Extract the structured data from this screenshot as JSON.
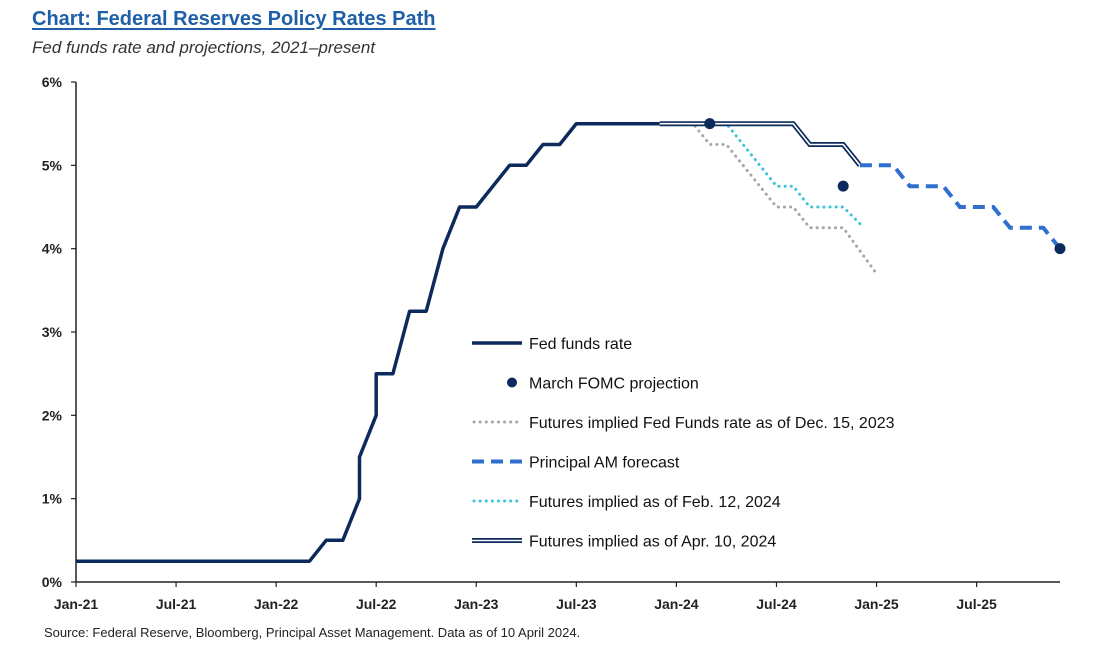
{
  "header": {
    "title": "Chart: Federal Reserves Policy Rates Path",
    "subtitle": "Fed funds rate and projections, 2021–present"
  },
  "footer": {
    "source": "Source: Federal Reserve, Bloomberg, Principal Asset Management. Data as of 10 April 2024."
  },
  "chart_data": {
    "type": "line",
    "title": "Chart: Federal Reserves Policy Rates Path",
    "subtitle": "Fed funds rate and projections, 2021–present",
    "xlabel": "",
    "ylabel": "",
    "x_range": [
      "2021-01",
      "2025-12"
    ],
    "ylim": [
      0,
      6
    ],
    "x_ticks": [
      {
        "label": "Jan-21",
        "x": "2021-01"
      },
      {
        "label": "Jul-21",
        "x": "2021-07"
      },
      {
        "label": "Jan-22",
        "x": "2022-01"
      },
      {
        "label": "Jul-22",
        "x": "2022-07"
      },
      {
        "label": "Jan-23",
        "x": "2023-01"
      },
      {
        "label": "Jul-23",
        "x": "2023-07"
      },
      {
        "label": "Jan-24",
        "x": "2024-01"
      },
      {
        "label": "Jul-24",
        "x": "2024-07"
      },
      {
        "label": "Jan-25",
        "x": "2025-01"
      },
      {
        "label": "Jul-25",
        "x": "2025-07"
      }
    ],
    "y_ticks": [
      {
        "label": "0%",
        "value": 0
      },
      {
        "label": "1%",
        "value": 1
      },
      {
        "label": "2%",
        "value": 2
      },
      {
        "label": "3%",
        "value": 3
      },
      {
        "label": "4%",
        "value": 4
      },
      {
        "label": "5%",
        "value": 5
      },
      {
        "label": "6%",
        "value": 6
      }
    ],
    "grid": false,
    "legend_position": "bottom-center",
    "series": [
      {
        "name": "Fed funds rate",
        "style": "solid",
        "color": "#0c2a5b",
        "points": [
          [
            "2021-01",
            0.25
          ],
          [
            "2022-03",
            0.25
          ],
          [
            "2022-04",
            0.5
          ],
          [
            "2022-05",
            0.5
          ],
          [
            "2022-05",
            0.5
          ],
          [
            "2022-06",
            1.0
          ],
          [
            "2022-06",
            1.5
          ],
          [
            "2022-07",
            2.0
          ],
          [
            "2022-07",
            2.5
          ],
          [
            "2022-08",
            2.5
          ],
          [
            "2022-09",
            3.25
          ],
          [
            "2022-10",
            3.25
          ],
          [
            "2022-11",
            4.0
          ],
          [
            "2022-12",
            4.5
          ],
          [
            "2023-01",
            4.5
          ],
          [
            "2023-02",
            4.75
          ],
          [
            "2023-03",
            5.0
          ],
          [
            "2023-04",
            5.0
          ],
          [
            "2023-05",
            5.25
          ],
          [
            "2023-06",
            5.25
          ],
          [
            "2023-07",
            5.5
          ],
          [
            "2023-12",
            5.5
          ]
        ]
      },
      {
        "name": "March FOMC projection",
        "style": "marker",
        "color": "#0c2a5b",
        "points": [
          [
            "2024-03",
            5.5
          ],
          [
            "2024-11",
            4.75
          ],
          [
            "2025-12",
            4.0
          ]
        ]
      },
      {
        "name": "Futures implied Fed Funds rate as of Dec. 15, 2023",
        "style": "dotted",
        "color": "#a6a6a6",
        "points": [
          [
            "2023-12",
            5.5
          ],
          [
            "2024-01",
            5.5
          ],
          [
            "2024-02",
            5.5
          ],
          [
            "2024-03",
            5.25
          ],
          [
            "2024-04",
            5.25
          ],
          [
            "2024-06",
            4.75
          ],
          [
            "2024-07",
            4.5
          ],
          [
            "2024-08",
            4.5
          ],
          [
            "2024-09",
            4.25
          ],
          [
            "2024-11",
            4.25
          ],
          [
            "2025-01",
            3.7
          ]
        ]
      },
      {
        "name": "Principal AM forecast",
        "style": "dashed",
        "color": "#2f6fce",
        "points": [
          [
            "2024-12",
            5.0
          ],
          [
            "2025-02",
            5.0
          ],
          [
            "2025-03",
            4.75
          ],
          [
            "2025-05",
            4.75
          ],
          [
            "2025-06",
            4.5
          ],
          [
            "2025-08",
            4.5
          ],
          [
            "2025-09",
            4.25
          ],
          [
            "2025-11",
            4.25
          ],
          [
            "2025-12",
            4.0
          ]
        ]
      },
      {
        "name": "Futures implied as of Feb. 12, 2024",
        "style": "dotted",
        "color": "#3cc4dd",
        "points": [
          [
            "2024-02",
            5.5
          ],
          [
            "2024-04",
            5.5
          ],
          [
            "2024-06",
            5.0
          ],
          [
            "2024-07",
            4.75
          ],
          [
            "2024-08",
            4.75
          ],
          [
            "2024-09",
            4.5
          ],
          [
            "2024-11",
            4.5
          ],
          [
            "2024-12",
            4.3
          ]
        ]
      },
      {
        "name": "Futures implied as of Apr. 10, 2024",
        "style": "double",
        "color": "#0c2a5b",
        "points": [
          [
            "2023-12",
            5.5
          ],
          [
            "2024-08",
            5.5
          ],
          [
            "2024-09",
            5.25
          ],
          [
            "2024-11",
            5.25
          ],
          [
            "2024-12",
            5.0
          ]
        ]
      }
    ]
  }
}
